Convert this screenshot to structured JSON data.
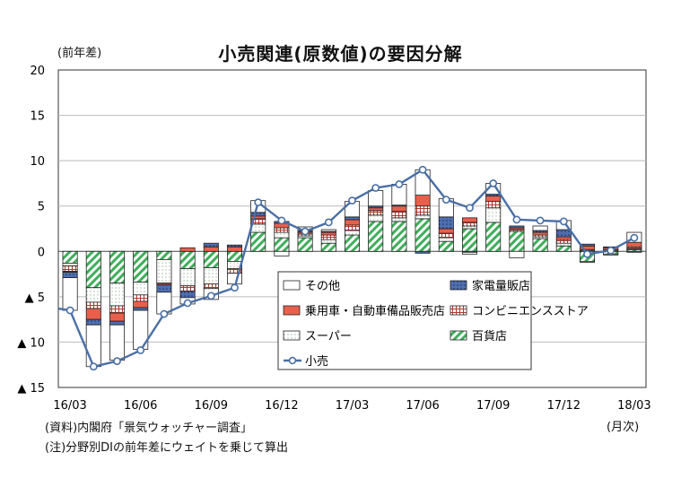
{
  "chart_data": {
    "type": "bar",
    "title": "小売関連(原数値)の要因分解",
    "unit_label": "(前年差)",
    "x_unit_label": "(月次)",
    "notes": [
      "(資料)内閣府「景気ウォッチャー調査」",
      "(注)分野別DIの前年差にウェイトを乗じて算出"
    ],
    "x": [
      "16/03",
      "16/04",
      "16/05",
      "16/06",
      "16/07",
      "16/08",
      "16/09",
      "16/10",
      "16/11",
      "16/12",
      "17/01",
      "17/02",
      "17/03",
      "17/04",
      "17/05",
      "17/06",
      "17/07",
      "17/08",
      "17/09",
      "17/10",
      "17/11",
      "17/12",
      "18/01",
      "18/02",
      "18/03"
    ],
    "x_tick_labels": [
      "16/03",
      "16/06",
      "16/09",
      "16/12",
      "17/03",
      "17/06",
      "17/09",
      "17/12",
      "18/03"
    ],
    "y_tick_labels": [
      "20",
      "15",
      "10",
      "5",
      "0",
      "▲ 5",
      "▲ 10",
      "▲ 15"
    ],
    "ylim": [
      -15,
      20
    ],
    "y_ticks": [
      20,
      15,
      10,
      5,
      0,
      -5,
      -10,
      -15
    ],
    "stacked": true,
    "legend_position": "inside-bottom-right",
    "series": [
      {
        "name": "百貨店",
        "kind": "bar",
        "color": "#3fae5a",
        "pattern": "diagonal-green",
        "values": [
          -1.3,
          -4.0,
          -3.5,
          -3.4,
          -0.9,
          -1.9,
          -1.8,
          -1.1,
          2.1,
          1.5,
          1.5,
          0.9,
          1.8,
          3.3,
          3.3,
          3.6,
          1.1,
          2.5,
          3.2,
          2.2,
          1.4,
          0.6,
          -1.1,
          -0.3,
          0.2
        ]
      },
      {
        "name": "スーパー",
        "kind": "bar",
        "color": "#ffffff",
        "pattern": "dots",
        "values": [
          -0.3,
          -1.6,
          -2.5,
          -1.4,
          -2.6,
          -1.9,
          -1.8,
          -0.8,
          0.9,
          0.6,
          0.2,
          0.4,
          0.5,
          0.7,
          0.4,
          0.4,
          0.4,
          0.3,
          1.6,
          0.0,
          0.2,
          0.3,
          0.1,
          0.1,
          0.1
        ]
      },
      {
        "name": "コンビニエンスストア",
        "kind": "bar",
        "color": "#c0504d",
        "pattern": "grid",
        "values": [
          -0.6,
          -0.7,
          -0.8,
          -0.7,
          -0.2,
          -0.6,
          -0.5,
          -0.5,
          0.6,
          0.5,
          0.2,
          0.5,
          0.6,
          0.5,
          0.7,
          1.0,
          0.5,
          0.4,
          0.7,
          0.2,
          0.2,
          0.4,
          0.1,
          0.1,
          0.2
        ]
      },
      {
        "name": "乗用車・自動車備品販売店",
        "kind": "bar",
        "color": "#e8604c",
        "pattern": "solid",
        "values": [
          -0.1,
          -1.2,
          -0.9,
          -0.7,
          0.0,
          0.4,
          0.5,
          0.5,
          0.3,
          0.5,
          0.2,
          0.3,
          0.6,
          0.3,
          0.6,
          1.2,
          0.5,
          0.5,
          0.6,
          0.2,
          0.3,
          0.3,
          0.4,
          0.2,
          0.5
        ]
      },
      {
        "name": "家電量販店",
        "kind": "bar",
        "color": "#4f6fb0",
        "pattern": "dots-blue",
        "values": [
          -0.6,
          -0.6,
          -0.4,
          -0.3,
          -0.8,
          -0.7,
          0.4,
          0.2,
          0.4,
          0.2,
          0.2,
          0.1,
          0.3,
          0.2,
          0.1,
          -0.2,
          1.3,
          -0.1,
          0.2,
          0.2,
          0.2,
          0.8,
          0.2,
          0.1,
          -0.1
        ]
      },
      {
        "name": "その他",
        "kind": "bar",
        "color": "#ffffff",
        "pattern": "white",
        "values": [
          -3.6,
          -4.6,
          -3.9,
          -4.3,
          -2.4,
          -0.7,
          -1.2,
          -1.2,
          1.3,
          -0.5,
          0.4,
          0.2,
          1.7,
          1.7,
          2.3,
          2.8,
          2.0,
          -0.2,
          1.2,
          -0.7,
          0.5,
          1.0,
          -0.1,
          -0.1,
          1.1
        ]
      },
      {
        "name": "小売",
        "kind": "line",
        "color": "#4a6fa5",
        "values": [
          -6.5,
          -12.7,
          -12.1,
          -10.9,
          -6.9,
          -5.7,
          -4.9,
          -4.0,
          5.4,
          3.4,
          2.2,
          3.2,
          5.6,
          7.0,
          7.4,
          9.0,
          5.7,
          4.8,
          7.5,
          3.5,
          3.4,
          3.3,
          -0.3,
          0.1,
          1.5
        ]
      }
    ]
  }
}
